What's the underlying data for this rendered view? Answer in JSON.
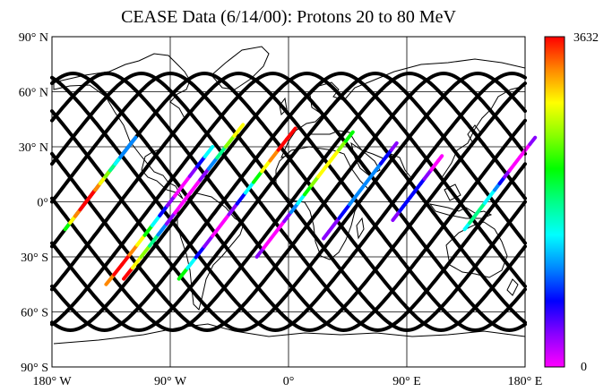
{
  "chart_data": {
    "type": "map",
    "title": "CEASE Data (6/14/00):  Protons 20 to 80 MeV",
    "projection": "equirectangular",
    "xlim": [
      -180,
      180
    ],
    "ylim": [
      -90,
      90
    ],
    "x_ticks": [
      {
        "value": -180,
        "label": "180° W"
      },
      {
        "value": -90,
        "label": "90° W"
      },
      {
        "value": 0,
        "label": "0°"
      },
      {
        "value": 90,
        "label": "90° E"
      },
      {
        "value": 180,
        "label": "180° E"
      }
    ],
    "y_ticks": [
      {
        "value": 90,
        "label": "90° N"
      },
      {
        "value": 60,
        "label": "60° N"
      },
      {
        "value": 30,
        "label": "30° N"
      },
      {
        "value": 0,
        "label": "0°"
      },
      {
        "value": -30,
        "label": "30° S"
      },
      {
        "value": -60,
        "label": "60° S"
      },
      {
        "value": -90,
        "label": "90° S"
      }
    ],
    "grid": true,
    "colorbar": {
      "min": 0,
      "max": 3632,
      "max_label": "3632",
      "min_label": "0",
      "colors": [
        "#ff00ff",
        "#8800ff",
        "#0000ff",
        "#0088ff",
        "#00ffff",
        "#00ff88",
        "#00ff00",
        "#88ff00",
        "#ffff00",
        "#ff8800",
        "#ff0000"
      ]
    },
    "orbit": {
      "inclination_deg": 70,
      "ascending_node_longitudes": [
        -180,
        -154,
        -128,
        -102,
        -76,
        -50,
        -24,
        2,
        28,
        54,
        80,
        106,
        132,
        158
      ]
    },
    "colored_segments": [
      {
        "node": -154,
        "from": -15,
        "to": 35,
        "value_low": 1000,
        "value_high": 3632,
        "start_value": 1000
      },
      {
        "node": -90,
        "from": -45,
        "to": 30,
        "value_low": 0,
        "value_high": 3632,
        "start_value": 0
      },
      {
        "node": -80,
        "from": -42,
        "to": 42,
        "value_low": 0,
        "value_high": 3632,
        "start_value": 0
      },
      {
        "node": -38,
        "from": -42,
        "to": 40,
        "value_low": 0,
        "value_high": 3632,
        "start_value": 0
      },
      {
        "node": 8,
        "from": -30,
        "to": 38,
        "value_low": 0,
        "value_high": 3000,
        "start_value": 0
      },
      {
        "node": 48,
        "from": -20,
        "to": 32,
        "value_low": 200,
        "value_high": 1200,
        "start_value": 1200
      },
      {
        "node": 90,
        "from": -10,
        "to": 25,
        "value_low": 0,
        "value_high": 900,
        "start_value": 200
      },
      {
        "node": 150,
        "from": -15,
        "to": 35,
        "value_low": 0,
        "value_high": 1800,
        "start_value": 0
      }
    ]
  }
}
